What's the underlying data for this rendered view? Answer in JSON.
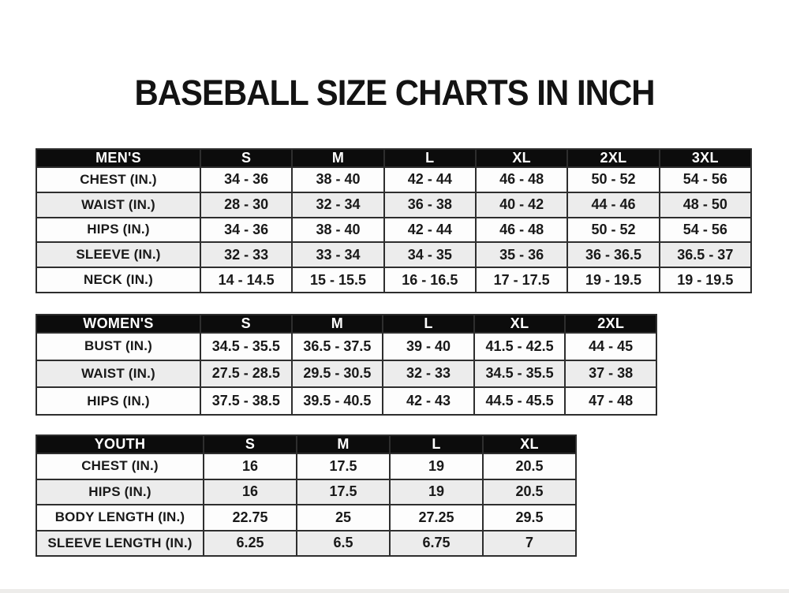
{
  "title": "BASEBALL SIZE CHARTS IN INCH",
  "colors": {
    "header_bg": "#0c0c0c",
    "header_text": "#ffffff",
    "row_bg": "#fdfdfd",
    "row_alt_bg": "#ececec",
    "border": "#2e2e2e",
    "text": "#191919"
  },
  "chart_data": [
    {
      "type": "table",
      "name": "mens",
      "columns": [
        "MEN'S",
        "S",
        "M",
        "L",
        "XL",
        "2XL",
        "3XL"
      ],
      "rows": [
        [
          "CHEST (IN.)",
          "34 - 36",
          "38 - 40",
          "42 - 44",
          "46 - 48",
          "50 - 52",
          "54 - 56"
        ],
        [
          "WAIST (IN.)",
          "28 - 30",
          "32 - 34",
          "36 - 38",
          "40 - 42",
          "44 - 46",
          "48 - 50"
        ],
        [
          "HIPS (IN.)",
          "34 - 36",
          "38 - 40",
          "42 - 44",
          "46 - 48",
          "50 - 52",
          "54 - 56"
        ],
        [
          "SLEEVE (IN.)",
          "32 - 33",
          "33 - 34",
          "34 - 35",
          "35 - 36",
          "36 - 36.5",
          "36.5 - 37"
        ],
        [
          "NECK (IN.)",
          "14 - 14.5",
          "15 - 15.5",
          "16 - 16.5",
          "17 - 17.5",
          "19 - 19.5",
          "19 - 19.5"
        ]
      ]
    },
    {
      "type": "table",
      "name": "womens",
      "columns": [
        "WOMEN'S",
        "S",
        "M",
        "L",
        "XL",
        "2XL"
      ],
      "rows": [
        [
          "BUST (IN.)",
          "34.5 - 35.5",
          "36.5 - 37.5",
          "39 - 40",
          "41.5 - 42.5",
          "44 - 45"
        ],
        [
          "WAIST (IN.)",
          "27.5 - 28.5",
          "29.5 - 30.5",
          "32 - 33",
          "34.5 - 35.5",
          "37 - 38"
        ],
        [
          "HIPS (IN.)",
          "37.5 - 38.5",
          "39.5 - 40.5",
          "42 - 43",
          "44.5 - 45.5",
          "47 - 48"
        ]
      ]
    },
    {
      "type": "table",
      "name": "youth",
      "columns": [
        "YOUTH",
        "S",
        "M",
        "L",
        "XL"
      ],
      "rows": [
        [
          "CHEST (IN.)",
          "16",
          "17.5",
          "19",
          "20.5"
        ],
        [
          "HIPS (IN.)",
          "16",
          "17.5",
          "19",
          "20.5"
        ],
        [
          "BODY LENGTH (IN.)",
          "22.75",
          "25",
          "27.25",
          "29.5"
        ],
        [
          "SLEEVE LENGTH (IN.)",
          "6.25",
          "6.5",
          "6.75",
          "7"
        ]
      ]
    }
  ]
}
